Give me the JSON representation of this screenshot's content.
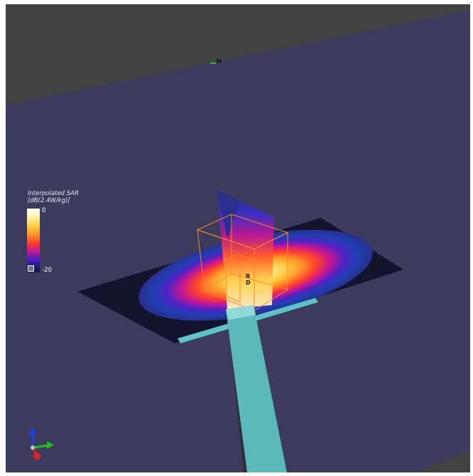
{
  "legend": {
    "title_line1": "Interpolated SAR",
    "title_line2": "[dB(2.4W/kg)]",
    "max_label": "0",
    "min_label": "-20"
  },
  "markers": {
    "h_label": "H",
    "r_label": "R",
    "d_label": "D"
  },
  "colors": {
    "background_plane": "#3c3b5e",
    "dark_region": "#404040",
    "feed_line": "#5bbab9",
    "hot": "#ffffff",
    "cold": "#14163f"
  },
  "axes_triad": {
    "x_color": "#e02020",
    "y_color": "#20c020",
    "z_color": "#2040e0"
  }
}
